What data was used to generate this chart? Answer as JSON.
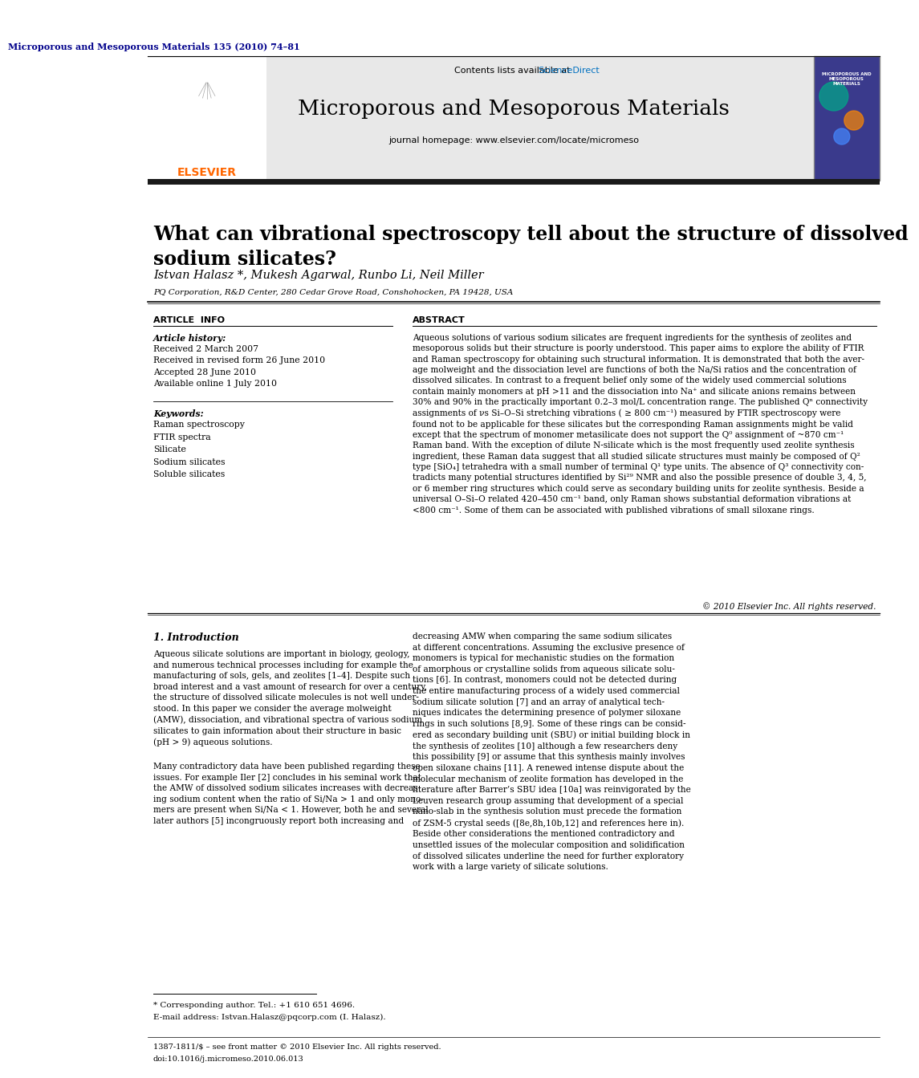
{
  "journal_ref": "Microporous and Mesoporous Materials 135 (2010) 74–81",
  "journal_name": "Microporous and Mesoporous Materials",
  "journal_homepage": "journal homepage: www.elsevier.com/locate/micromeso",
  "contents_line": "Contents lists available at ",
  "sciencedirect_text": "ScienceDirect",
  "sciencedirect_color": "#0070C0",
  "paper_title": "What can vibrational spectroscopy tell about the structure of dissolved\nsodium silicates?",
  "authors": "Istvan Halasz *, Mukesh Agarwal, Runbo Li, Neil Miller",
  "affiliation": "PQ Corporation, R&D Center, 280 Cedar Grove Road, Conshohocken, PA 19428, USA",
  "article_info_header": "ARTICLE  INFO",
  "abstract_header": "ABSTRACT",
  "article_history_label": "Article history:",
  "article_history": "Received 2 March 2007\nReceived in revised form 26 June 2010\nAccepted 28 June 2010\nAvailable online 1 July 2010",
  "keywords_label": "Keywords:",
  "keywords": "Raman spectroscopy\nFTIR spectra\nSilicate\nSodium silicates\nSoluble silicates",
  "abstract_text": "Aqueous solutions of various sodium silicates are frequent ingredients for the synthesis of zeolites and\nmesoporous solids but their structure is poorly understood. This paper aims to explore the ability of FTIR\nand Raman spectroscopy for obtaining such structural information. It is demonstrated that both the aver-\nage molweight and the dissociation level are functions of both the Na/Si ratios and the concentration of\ndissolved silicates. In contrast to a frequent belief only some of the widely used commercial solutions\ncontain mainly monomers at pH >11 and the dissociation into Na⁺ and silicate anions remains between\n30% and 90% in the practically important 0.2–3 mol/L concentration range. The published Qⁿ connectivity\nassignments of νs Si–O–Si stretching vibrations ( ≥ 800 cm⁻¹) measured by FTIR spectroscopy were\nfound not to be applicable for these silicates but the corresponding Raman assignments might be valid\nexcept that the spectrum of monomer metasilicate does not support the Q⁰ assignment of ~870 cm⁻¹\nRaman band. With the exception of dilute N-silicate which is the most frequently used zeolite synthesis\ningredient, these Raman data suggest that all studied silicate structures must mainly be composed of Q²\ntype [SiO₄] tetrahedra with a small number of terminal Q¹ type units. The absence of Q³ connectivity con-\ntradicts many potential structures identified by Si²⁹ NMR and also the possible presence of double 3, 4, 5,\nor 6 member ring structures which could serve as secondary building units for zeolite synthesis. Beside a\nuniversal O–Si–O related 420–450 cm⁻¹ band, only Raman shows substantial deformation vibrations at\n<800 cm⁻¹. Some of them can be associated with published vibrations of small siloxane rings.",
  "copyright": "© 2010 Elsevier Inc. All rights reserved.",
  "intro_header": "1. Introduction",
  "intro_left_para1": "Aqueous silicate solutions are important in biology, geology,\nand numerous technical processes including for example the\nmanufacturing of sols, gels, and zeolites [1–4]. Despite such\nbroad interest and a vast amount of research for over a century,\nthe structure of dissolved silicate molecules is not well under-\nstood. In this paper we consider the average molweight\n(AMW), dissociation, and vibrational spectra of various sodium\nsilicates to gain information about their structure in basic\n(pH > 9) aqueous solutions.",
  "intro_left_para2": "Many contradictory data have been published regarding these\nissues. For example Iler [2] concludes in his seminal work that\nthe AMW of dissolved sodium silicates increases with decreas-\ning sodium content when the ratio of Si/Na > 1 and only mono-\nmers are present when Si/Na < 1. However, both he and several\nlater authors [5] incongruously report both increasing and",
  "intro_right_text": "decreasing AMW when comparing the same sodium silicates\nat different concentrations. Assuming the exclusive presence of\nmonomers is typical for mechanistic studies on the formation\nof amorphous or crystalline solids from aqueous silicate solu-\ntions [6]. In contrast, monomers could not be detected during\nthe entire manufacturing process of a widely used commercial\nsodium silicate solution [7] and an array of analytical tech-\nniques indicates the determining presence of polymer siloxane\nrings in such solutions [8,9]. Some of these rings can be consid-\nered as secondary building unit (SBU) or initial building block in\nthe synthesis of zeolites [10] although a few researchers deny\nthis possibility [9] or assume that this synthesis mainly involves\nopen siloxane chains [11]. A renewed intense dispute about the\nmolecular mechanism of zeolite formation has developed in the\nliterature after Barrer’s SBU idea [10a] was reinvigorated by the\nLeuven research group assuming that development of a special\nnano-slab in the synthesis solution must precede the formation\nof ZSM-5 crystal seeds ([8e,8h,10b,12] and references here in).\nBeside other considerations the mentioned contradictory and\nunsettled issues of the molecular composition and solidification\nof dissolved silicates underline the need for further exploratory\nwork with a large variety of silicate solutions.",
  "footnote_star": "* Corresponding author. Tel.: +1 610 651 4696.",
  "footnote_email": "E-mail address: Istvan.Halasz@pqcorp.com (I. Halasz).",
  "footer_issn": "1387-1811/$ – see front matter © 2010 Elsevier Inc. All rights reserved.",
  "footer_doi": "doi:10.1016/j.micromeso.2010.06.013",
  "bg_color": "#ffffff",
  "header_bg": "#e8e8e8",
  "thick_bar_color": "#1a1a1a",
  "journal_ref_color": "#00008B",
  "elsevier_orange": "#FF6600",
  "cover_bg": "#3a3a8c"
}
